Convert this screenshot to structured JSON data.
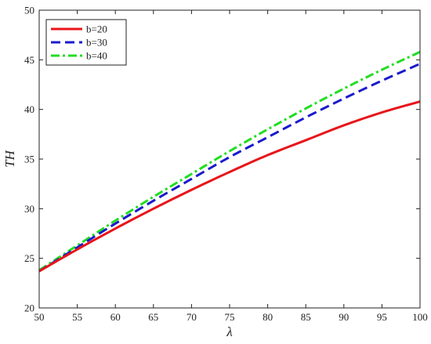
{
  "chart_data": {
    "type": "line",
    "xlabel": "λ",
    "ylabel": "TH",
    "xlim": [
      50,
      100
    ],
    "ylim": [
      20,
      50
    ],
    "xticks": [
      50,
      55,
      60,
      65,
      70,
      75,
      80,
      85,
      90,
      95,
      100
    ],
    "yticks": [
      20,
      25,
      30,
      35,
      40,
      45,
      50
    ],
    "grid": false,
    "legend_position": "top-left",
    "x": [
      50,
      55,
      60,
      65,
      70,
      75,
      80,
      85,
      90,
      95,
      100
    ],
    "series": [
      {
        "name": "b=20",
        "color": "#e8141a",
        "style": "solid",
        "values": [
          23.7,
          25.9,
          28.0,
          30.0,
          31.9,
          33.7,
          35.4,
          36.9,
          38.4,
          39.7,
          40.8
        ]
      },
      {
        "name": "b=30",
        "color": "#1a1acc",
        "style": "dashed",
        "values": [
          23.7,
          26.1,
          28.5,
          30.8,
          33.0,
          35.2,
          37.2,
          39.2,
          41.1,
          42.9,
          44.6
        ]
      },
      {
        "name": "b=40",
        "color": "#22dd22",
        "style": "dashdot",
        "values": [
          23.8,
          26.3,
          28.8,
          31.2,
          33.5,
          35.8,
          38.0,
          40.1,
          42.1,
          44.0,
          45.8
        ]
      }
    ]
  }
}
